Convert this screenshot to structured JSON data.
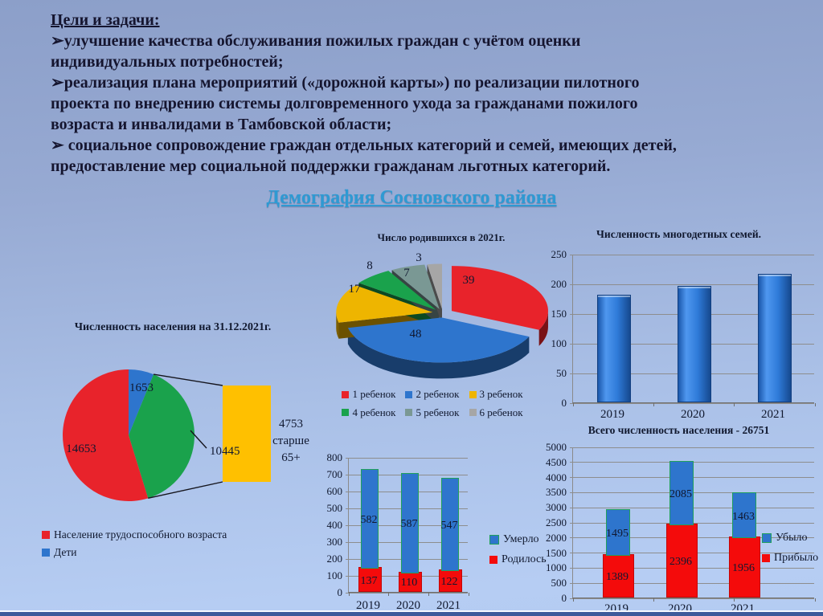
{
  "slide": {
    "heading": "Цели и задачи:",
    "bullets": [
      "➢улучшение качества обслуживания пожилых граждан с учётом оценки индивидуальных потребностей;",
      "➢реализация плана мероприятий («дорожной карты») по реализации пилотного проекта по внедрению системы долговременного ухода за гражданами пожилого возраста и инвалидами в Тамбовской области;",
      "➢ социальное сопровождение граждан отдельных категорий и семей, имеющих детей, предоставление мер социальной поддержки гражданам льготных категорий."
    ],
    "section_title": "Демография Сосновского района"
  },
  "chart_data": [
    {
      "id": "births_pie",
      "type": "pie",
      "style": "3d-exploded",
      "title": "Число родившихся в 2021г.",
      "labels": [
        "1 ребенок",
        "2 ребенок",
        "3 ребенок",
        "4 ребенок",
        "5 ребенок",
        "6 ребенок"
      ],
      "values": [
        39,
        48,
        17,
        8,
        7,
        3
      ],
      "colors": [
        "#e8232b",
        "#2e75cd",
        "#eeb500",
        "#1aa24c",
        "#7a9894",
        "#a6a6a6"
      ],
      "legend_position": "bottom"
    },
    {
      "id": "families_bar",
      "type": "bar",
      "title": "Численность многодетных семей.",
      "categories": [
        "2019",
        "2020",
        "2021"
      ],
      "values": [
        178,
        193,
        214
      ],
      "ylim": [
        0,
        250
      ],
      "ytick_step": 50,
      "bar_color": "#2273dd",
      "grid": true
    },
    {
      "id": "population_pie",
      "type": "pie",
      "style": "flat-with-callout",
      "title": "Численность населения на 31.12.2021г.",
      "slices": [
        {
          "label": "Дети",
          "value": 1653,
          "color": "#2e75cd"
        },
        {
          "label": "",
          "value": 10445,
          "color": "#1aa24c"
        },
        {
          "label": "Население трудоспособного возраста",
          "value": 14653,
          "color": "#e8232b"
        }
      ],
      "callout": {
        "box_color": "#ffc000",
        "text": "4753 старше 65+"
      },
      "legend": [
        {
          "label": "Население трудоспособного возраста",
          "color": "#e8232b"
        },
        {
          "label": "Дети",
          "color": "#2e75cd"
        }
      ]
    },
    {
      "id": "vital_bar",
      "type": "stacked-bar",
      "categories": [
        "2019",
        "2020",
        "2021"
      ],
      "series": [
        {
          "name": "Родилось",
          "color": "#f40b0b",
          "values": [
            137,
            110,
            122
          ]
        },
        {
          "name": "Умерло",
          "color": "#2e75cd",
          "values": [
            582,
            587,
            547
          ]
        }
      ],
      "ylim": [
        0,
        800
      ],
      "ytick_step": 100,
      "legend": [
        "Умерло",
        "Родилось"
      ],
      "grid": true
    },
    {
      "id": "migration_bar",
      "type": "stacked-bar",
      "title": "Всего численность населения - 26751",
      "categories": [
        "2019",
        "2020",
        "2021"
      ],
      "series": [
        {
          "name": "Прибыло",
          "color": "#f40b0b",
          "values": [
            1389,
            2396,
            1956
          ]
        },
        {
          "name": "Убыло",
          "color": "#2e75cd",
          "values": [
            1495,
            2085,
            1463
          ]
        }
      ],
      "ylim": [
        0,
        5000
      ],
      "ytick_step": 500,
      "legend": [
        "Убыло",
        "Прибыло"
      ],
      "grid": true
    }
  ]
}
